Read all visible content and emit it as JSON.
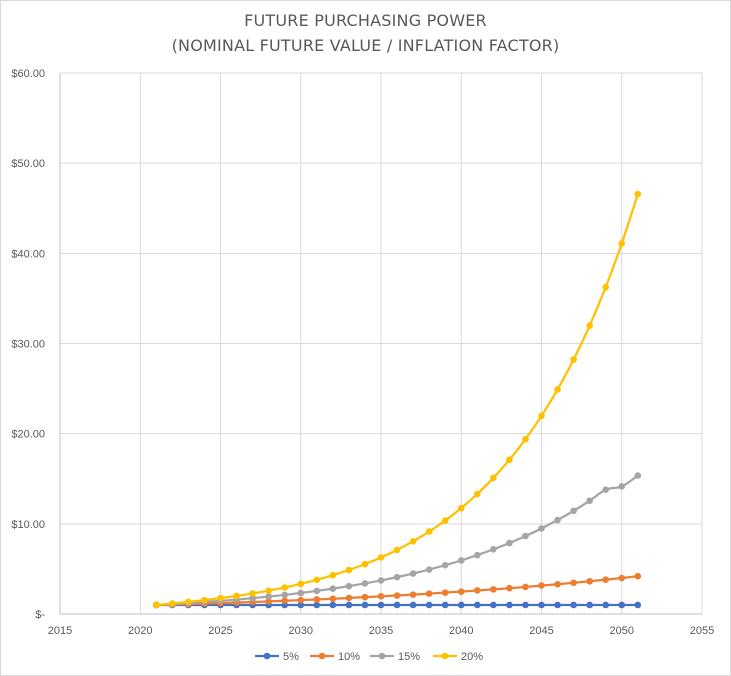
{
  "chart_data": {
    "type": "scatter",
    "title": "FUTURE PURCHASING POWER",
    "subtitle": "(NOMINAL FUTURE VALUE / INFLATION FACTOR)",
    "xlabel": "",
    "ylabel": "",
    "xlim": [
      2015,
      2055
    ],
    "ylim": [
      0,
      60
    ],
    "x_ticks": [
      2015,
      2020,
      2025,
      2030,
      2035,
      2040,
      2045,
      2050,
      2055
    ],
    "y_ticks": [
      {
        "value": 0,
        "label": "$-"
      },
      {
        "value": 10,
        "label": "$10.00"
      },
      {
        "value": 20,
        "label": "$20.00"
      },
      {
        "value": 30,
        "label": "$30.00"
      },
      {
        "value": 40,
        "label": "$40.00"
      },
      {
        "value": 50,
        "label": "$50.00"
      },
      {
        "value": 60,
        "label": "$60.00"
      }
    ],
    "grid": "both",
    "legend": "bottom",
    "x": [
      2021,
      2022,
      2023,
      2024,
      2025,
      2026,
      2027,
      2028,
      2029,
      2030,
      2031,
      2032,
      2033,
      2034,
      2035,
      2036,
      2037,
      2038,
      2039,
      2040,
      2041,
      2042,
      2043,
      2044,
      2045,
      2046,
      2047,
      2048,
      2049,
      2050,
      2051
    ],
    "series": [
      {
        "name": "5%",
        "color": "#4472c4",
        "values": [
          1,
          1,
          1,
          1,
          1,
          1,
          1,
          1,
          1,
          1,
          1,
          1,
          1,
          1,
          1,
          1,
          1,
          1,
          1,
          1,
          1,
          1,
          1,
          1,
          1,
          1,
          1,
          1,
          1,
          1,
          1
        ]
      },
      {
        "name": "10%",
        "color": "#ed7d31",
        "values": [
          1.0,
          1.05,
          1.1,
          1.15,
          1.21,
          1.27,
          1.33,
          1.4,
          1.47,
          1.54,
          1.61,
          1.69,
          1.78,
          1.87,
          1.96,
          2.05,
          2.15,
          2.26,
          2.37,
          2.48,
          2.61,
          2.73,
          2.86,
          3.0,
          3.15,
          3.3,
          3.46,
          3.63,
          3.81,
          3.99,
          4.19
        ]
      },
      {
        "name": "15%",
        "color": "#a5a5a5",
        "values": [
          1.0,
          1.1,
          1.21,
          1.33,
          1.46,
          1.6,
          1.76,
          1.93,
          2.12,
          2.33,
          2.56,
          2.81,
          3.09,
          3.39,
          3.72,
          4.09,
          4.49,
          4.93,
          5.41,
          5.94,
          6.53,
          7.17,
          7.87,
          8.64,
          9.49,
          10.42,
          11.44,
          12.56,
          13.79,
          14.15,
          15.35
        ]
      },
      {
        "name": "20%",
        "color": "#ffc000",
        "values": [
          1.0,
          1.16,
          1.34,
          1.54,
          1.76,
          2.0,
          2.28,
          2.59,
          2.94,
          3.34,
          3.79,
          4.3,
          4.88,
          5.53,
          6.27,
          7.11,
          8.06,
          9.14,
          10.36,
          11.74,
          13.31,
          15.09,
          17.1,
          19.38,
          21.97,
          24.9,
          28.22,
          31.98,
          36.25,
          41.09,
          46.57
        ]
      }
    ]
  }
}
